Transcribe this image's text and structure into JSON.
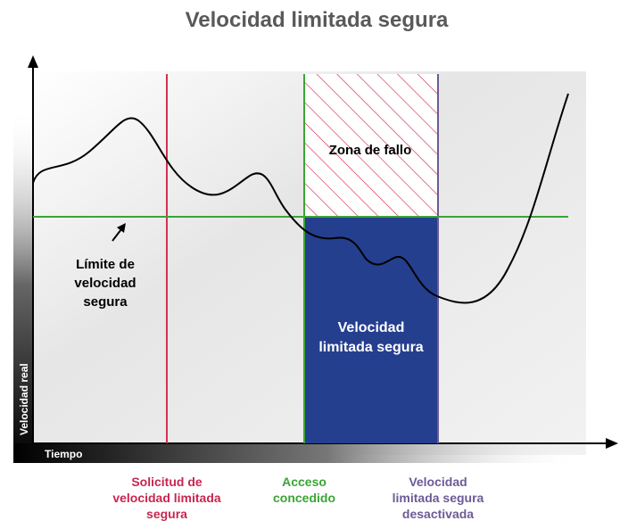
{
  "title": "Velocidad limitada segura",
  "y_axis_label": "Velocidad real",
  "x_axis_label": "Tiempo",
  "limit_annotation": {
    "lines": [
      "Límite de",
      "velocidad",
      "segura"
    ]
  },
  "fault_zone": {
    "label": "Zona de fallo"
  },
  "safe_zone": {
    "lines": [
      "Velocidad",
      "limitada segura"
    ]
  },
  "events": [
    {
      "lines": [
        "Solicitud de",
        "velocidad limitada",
        "segura"
      ]
    },
    {
      "lines": [
        "Acceso",
        "concedido"
      ]
    },
    {
      "lines": [
        "Velocidad",
        "limitada segura",
        "desactivada"
      ]
    }
  ]
}
